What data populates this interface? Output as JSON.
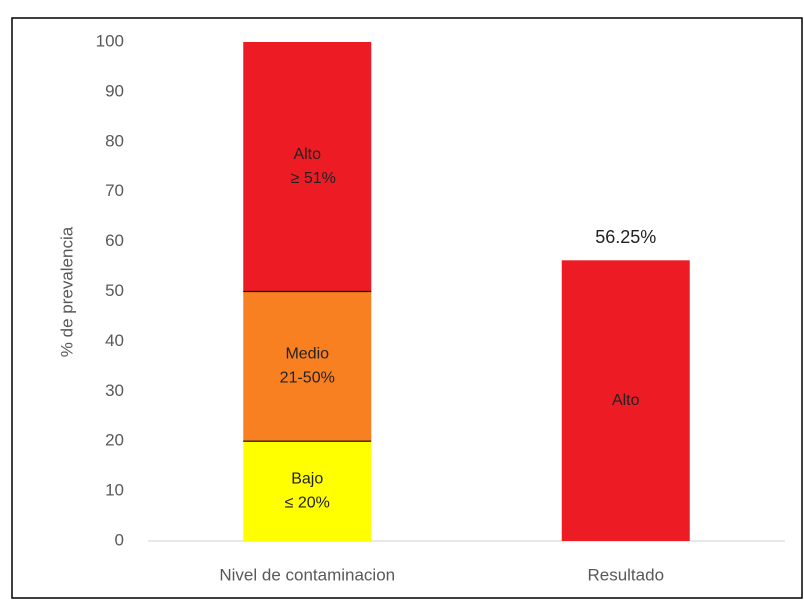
{
  "chart_data": {
    "type": "bar",
    "stacked": true,
    "ylabel": "% de prevalencia",
    "categories": [
      "Nivel de contaminacion",
      "Resultado"
    ],
    "series": [
      {
        "name": "Bajo",
        "range": "≤ 20%",
        "color": "#ffff00",
        "values": [
          20,
          null
        ]
      },
      {
        "name": "Medio",
        "range": "21-50%",
        "color": "#f98020",
        "values": [
          30,
          null
        ]
      },
      {
        "name": "Alto",
        "range": "≥ 51%",
        "color": "#ed1c24",
        "values": [
          50,
          null
        ]
      },
      {
        "name": "Alto",
        "color": "#ed1c24",
        "values": [
          null,
          56.25
        ],
        "value_labels": [
          null,
          "56.25%"
        ]
      }
    ],
    "ylim": [
      0,
      100
    ],
    "yticks": [
      0,
      10,
      20,
      30,
      40,
      50,
      60,
      70,
      80,
      90,
      100
    ],
    "grid": false
  }
}
